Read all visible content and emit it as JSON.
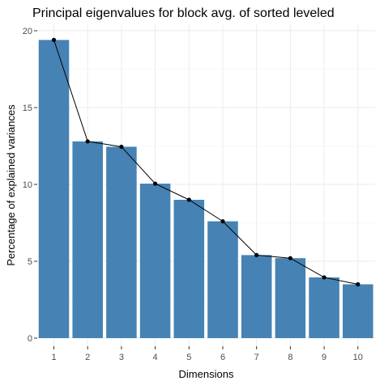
{
  "chart_data": {
    "type": "bar",
    "title": "Principal eigenvalues for block avg. of sorted leveled",
    "xlabel": "Dimensions",
    "ylabel": "Percentage of explained variances",
    "categories": [
      "1",
      "2",
      "3",
      "4",
      "5",
      "6",
      "7",
      "8",
      "9",
      "10"
    ],
    "values": [
      19.4,
      12.8,
      12.45,
      10.05,
      9.0,
      7.6,
      5.4,
      5.2,
      3.95,
      3.5
    ],
    "line_overlay": true,
    "ylim": [
      0,
      20
    ],
    "yticks": [
      0,
      5,
      10,
      15,
      20
    ],
    "grid": true,
    "colors": {
      "bar": "#4682B4",
      "line": "#000000",
      "background": "#ffffff",
      "grid": "#ebebeb"
    }
  }
}
